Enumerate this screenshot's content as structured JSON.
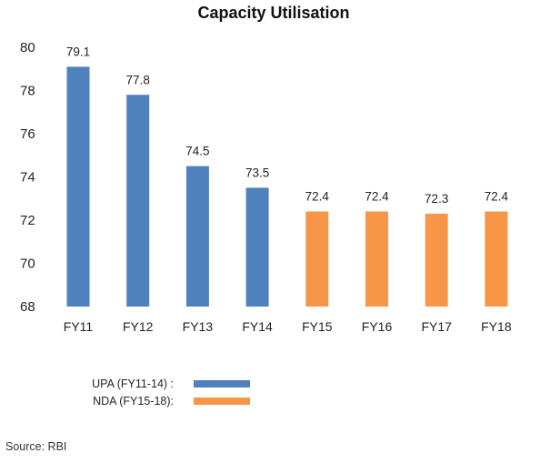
{
  "chart_data": {
    "type": "bar",
    "title": "Capacity Utilisation",
    "categories": [
      "FY11",
      "FY12",
      "FY13",
      "FY14",
      "FY15",
      "FY16",
      "FY17",
      "FY18"
    ],
    "values": [
      79.1,
      77.8,
      74.5,
      73.5,
      72.4,
      72.4,
      72.3,
      72.4
    ],
    "data_labels": [
      "79.1",
      "77.8",
      "74.5",
      "73.5",
      "72.4",
      "72.4",
      "72.3",
      "72.4"
    ],
    "yticks": [
      "68",
      "70",
      "72",
      "74",
      "76",
      "78",
      "80"
    ],
    "ylim": [
      68,
      80
    ],
    "grid": false,
    "legend_placement": "bottom-left",
    "series": [
      {
        "name": "UPA (FY11-14) :",
        "color": "#4f81bd",
        "categories": [
          "FY11",
          "FY12",
          "FY13",
          "FY14"
        ]
      },
      {
        "name": "NDA (FY15-18):",
        "color": "#f79646",
        "categories": [
          "FY15",
          "FY16",
          "FY17",
          "FY18"
        ]
      }
    ]
  },
  "footer": {
    "source": "Source: RBI"
  }
}
